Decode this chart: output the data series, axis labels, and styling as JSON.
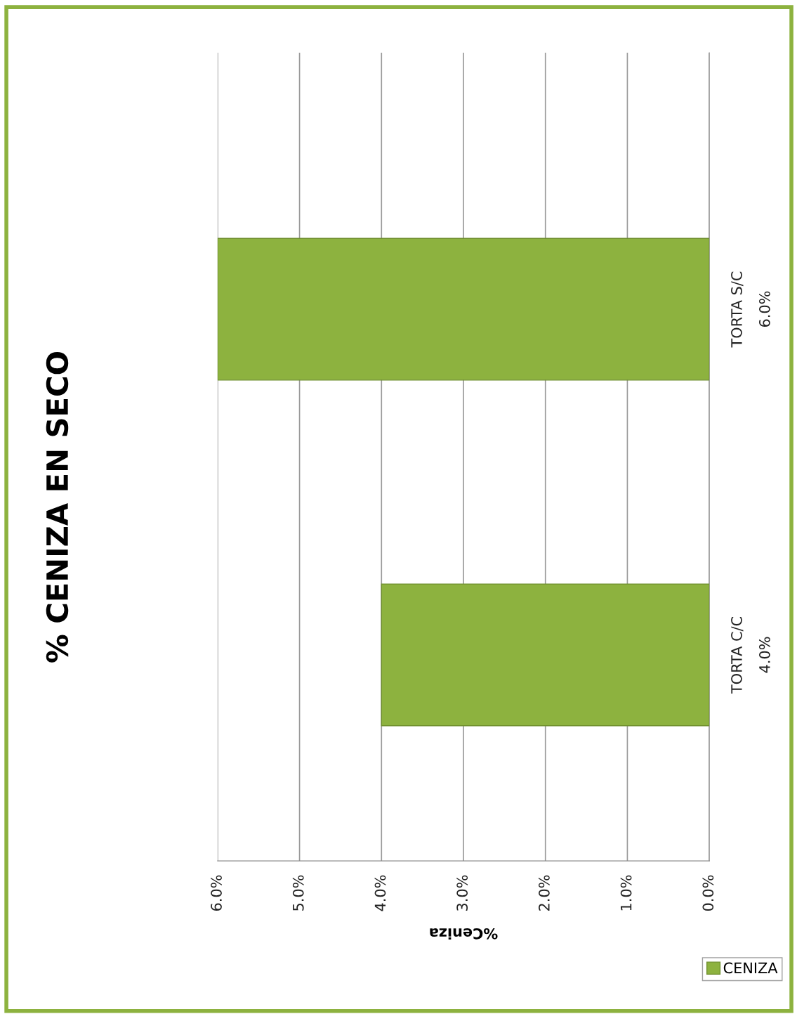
{
  "chart_data": {
    "type": "bar",
    "orientation": "horizontal",
    "title": "% CENIZA EN SECO",
    "xlabel": "%Ceniza",
    "categories": [
      "TORTA S/C",
      "TORTA C/C"
    ],
    "series": [
      {
        "name": "CENIZA",
        "color": "#8db23f",
        "values": [
          6.0,
          4.0
        ],
        "value_labels": [
          "6.0%",
          "4.0%"
        ]
      }
    ],
    "xlim": [
      6,
      0
    ],
    "xticks": [
      {
        "value": 6,
        "label": "6.0%"
      },
      {
        "value": 5,
        "label": "5.0%"
      },
      {
        "value": 4,
        "label": "4.0%"
      },
      {
        "value": 3,
        "label": "3.0%"
      },
      {
        "value": 2,
        "label": "2.0%"
      },
      {
        "value": 1,
        "label": "1.0%"
      },
      {
        "value": 0,
        "label": "0.0%"
      }
    ],
    "grid": "x",
    "legend": "bottom right"
  }
}
